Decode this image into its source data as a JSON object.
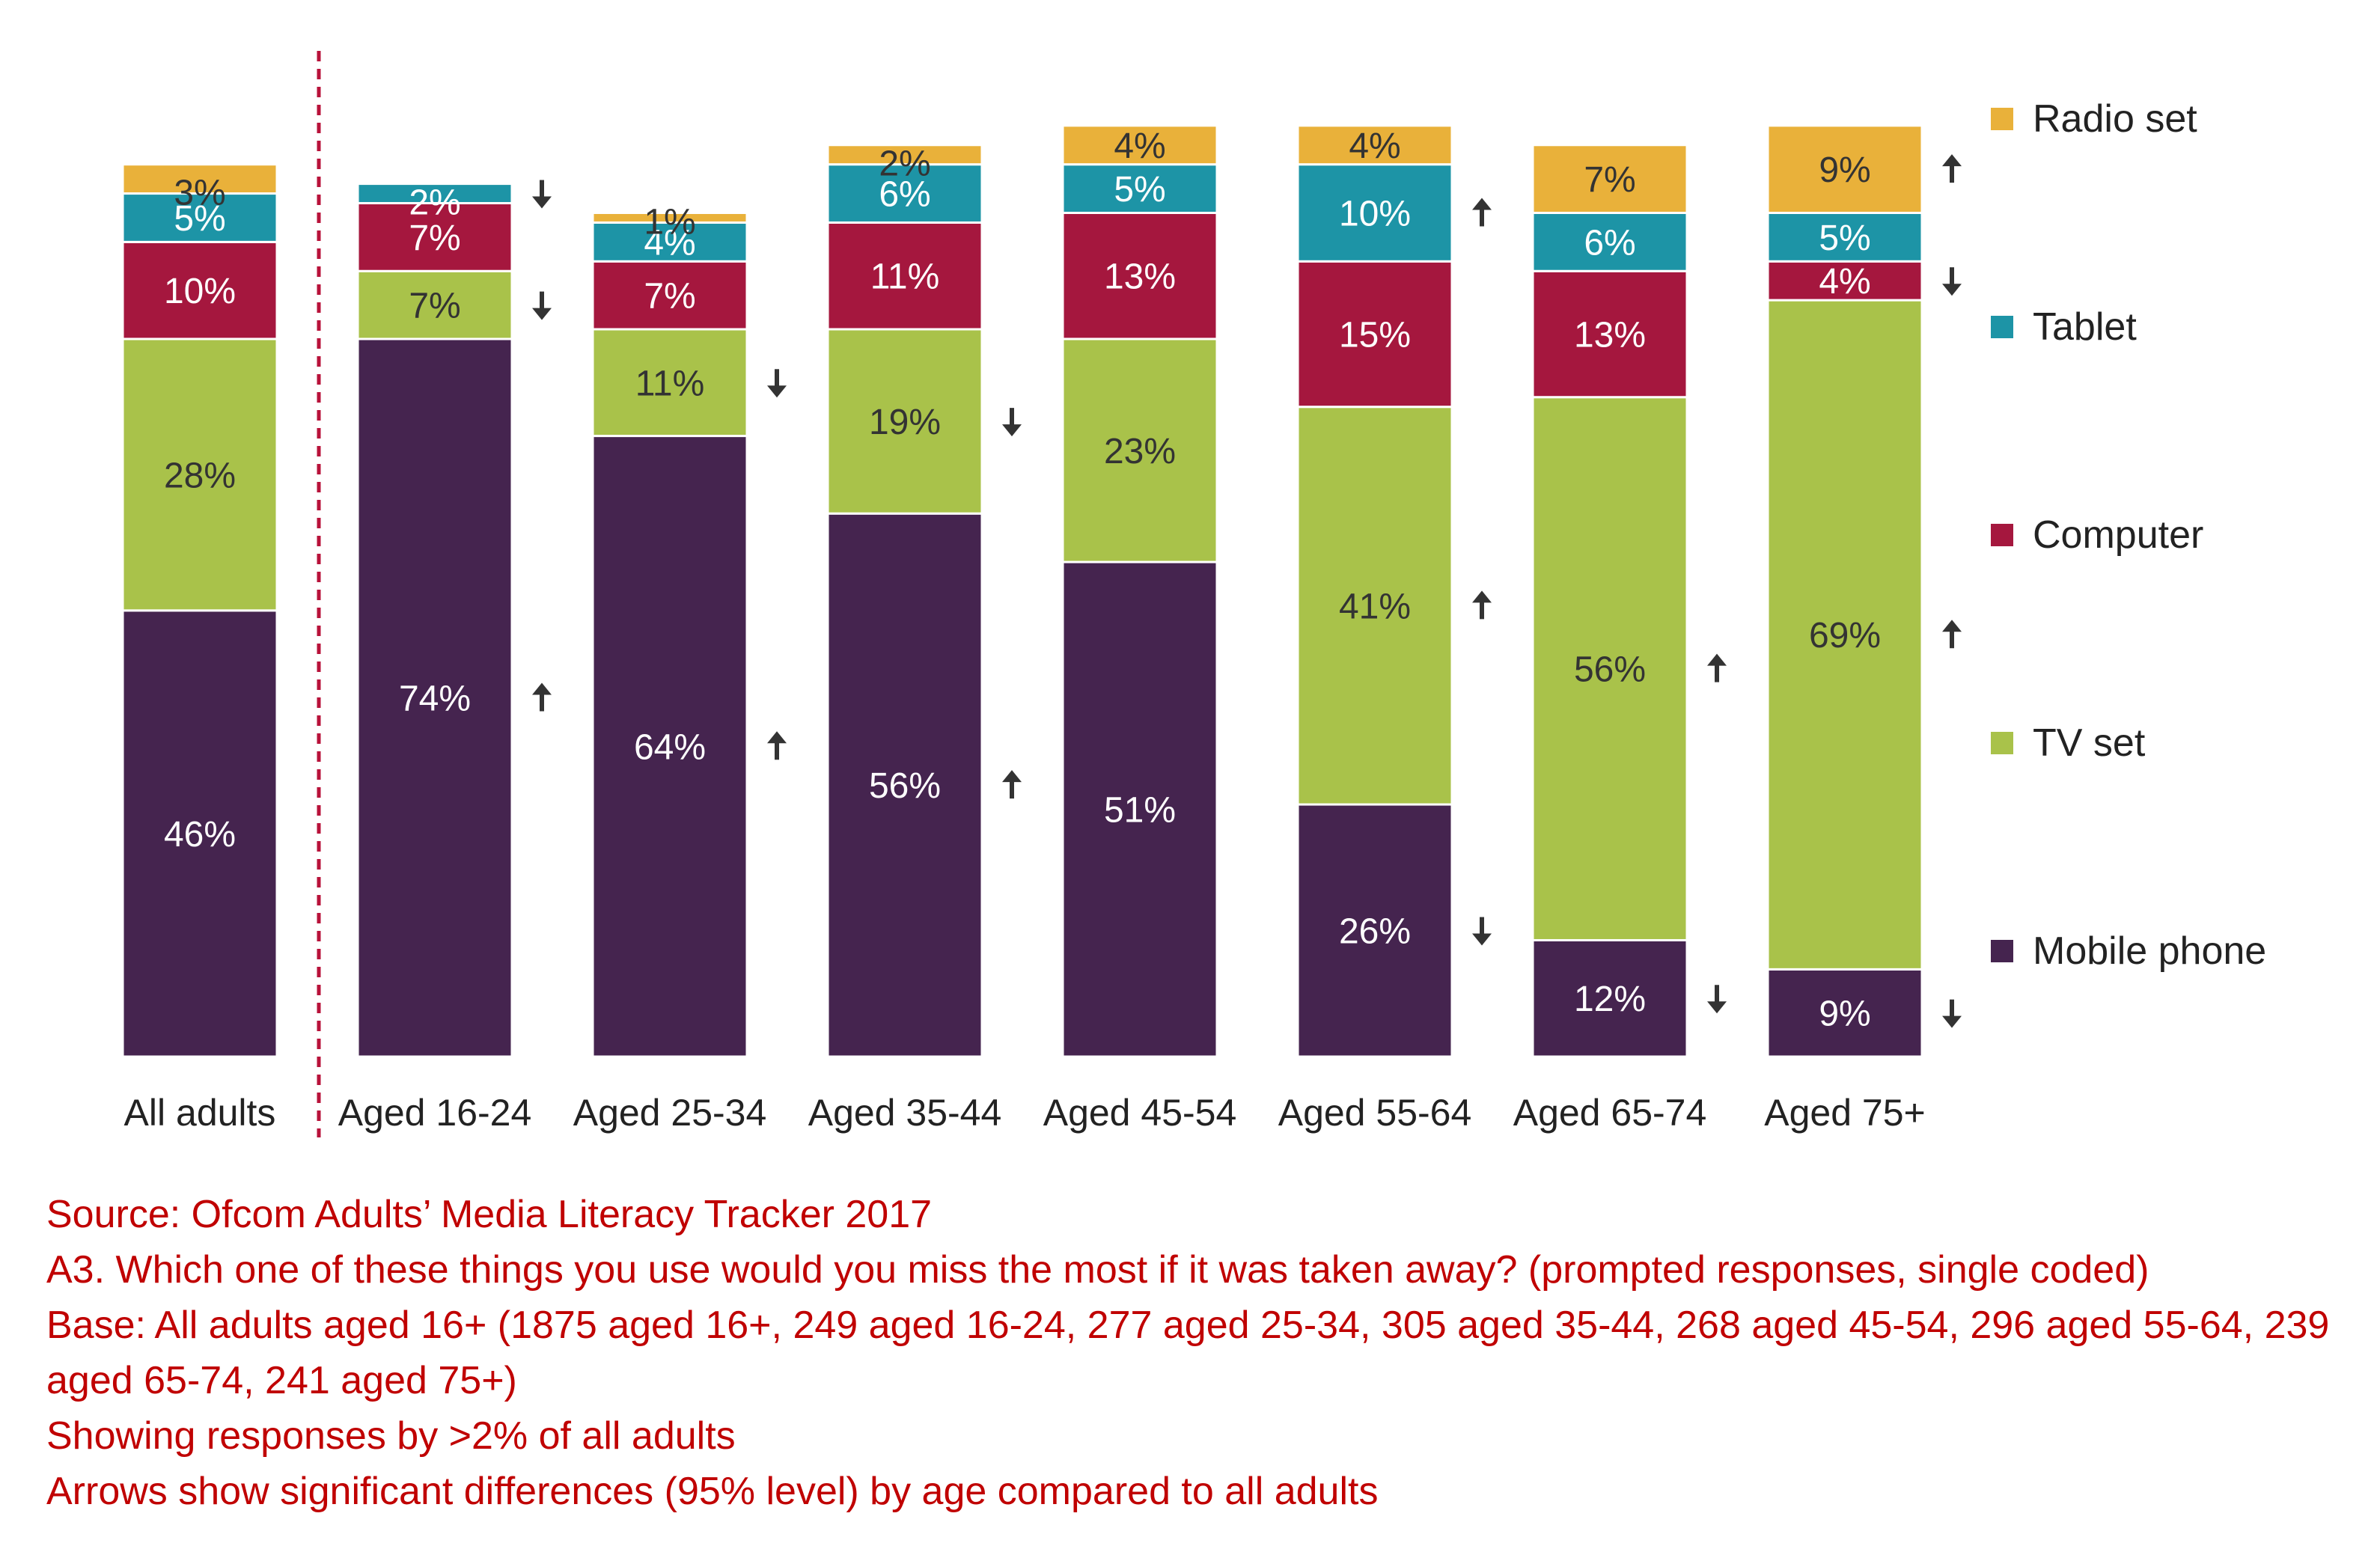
{
  "chart_data": {
    "type": "bar",
    "stacked": true,
    "percent_axis": true,
    "categories": [
      "All adults",
      "Aged 16-24",
      "Aged 25-34",
      "Aged 35-44",
      "Aged 45-54",
      "Aged 55-64",
      "Aged 65-74",
      "Aged 75+"
    ],
    "series": [
      {
        "name": "Mobile phone",
        "color": "#45244f",
        "values": [
          46,
          74,
          64,
          56,
          51,
          26,
          12,
          9
        ]
      },
      {
        "name": "TV set",
        "color": "#a9c24a",
        "values": [
          28,
          7,
          11,
          19,
          23,
          41,
          56,
          69
        ]
      },
      {
        "name": "Computer",
        "color": "#a5173e",
        "values": [
          10,
          7,
          7,
          11,
          13,
          15,
          13,
          4
        ]
      },
      {
        "name": "Tablet",
        "color": "#1d94a6",
        "values": [
          5,
          2,
          4,
          6,
          5,
          10,
          6,
          5
        ]
      },
      {
        "name": "Radio set",
        "color": "#e9b13a",
        "values": [
          3,
          0,
          1,
          2,
          4,
          4,
          7,
          9
        ]
      }
    ],
    "data_labels": [
      [
        "46%",
        "28%",
        "10%",
        "5%",
        "3%"
      ],
      [
        "74%",
        "7%",
        "7%",
        "2%",
        ""
      ],
      [
        "64%",
        "11%",
        "7%",
        "4%",
        "1%"
      ],
      [
        "56%",
        "19%",
        "11%",
        "6%",
        "2%"
      ],
      [
        "51%",
        "23%",
        "13%",
        "5%",
        "4%"
      ],
      [
        "26%",
        "41%",
        "15%",
        "10%",
        "4%"
      ],
      [
        "12%",
        "56%",
        "13%",
        "6%",
        "7%"
      ],
      [
        "9%",
        "69%",
        "4%",
        "5%",
        "9%"
      ]
    ],
    "significance_arrows": [
      [
        "",
        "",
        "",
        "",
        ""
      ],
      [
        "up",
        "down",
        "",
        "down",
        ""
      ],
      [
        "up",
        "down",
        "",
        "",
        ""
      ],
      [
        "up",
        "down",
        "",
        "",
        ""
      ],
      [
        "",
        "",
        "",
        "",
        ""
      ],
      [
        "down",
        "up",
        "",
        "up",
        ""
      ],
      [
        "down",
        "up",
        "",
        "",
        ""
      ],
      [
        "down",
        "up",
        "down",
        "",
        "up"
      ]
    ],
    "legend_position": "right",
    "legend_order": [
      "Radio set",
      "Tablet",
      "Computer",
      "TV set",
      "Mobile phone"
    ],
    "separator_after_category": "All adults",
    "separator_color": "#b8123a",
    "arrow_color": "#333333",
    "label_color_light": "#ffffff",
    "label_color_dark": "#333333",
    "grid": false
  },
  "notes": {
    "source": "Source: Ofcom Adults’ Media Literacy Tracker 2017",
    "question": "A3. Which one of these things you use would you miss the most if it was taken away? (prompted responses, single coded)",
    "base": "Base: All adults aged 16+ (1875 aged 16+, 249 aged 16-24, 277 aged 25-34, 305 aged 35-44, 268 aged 45-54, 296 aged 55-64, 239 aged 65-74, 241 aged 75+)",
    "showing": "Showing responses by >2% of all adults",
    "arrows": "Arrows show significant differences (95% level) by age compared to all adults"
  },
  "colors": {
    "notes_text": "#c00000",
    "axis_label_text": "#222222"
  }
}
